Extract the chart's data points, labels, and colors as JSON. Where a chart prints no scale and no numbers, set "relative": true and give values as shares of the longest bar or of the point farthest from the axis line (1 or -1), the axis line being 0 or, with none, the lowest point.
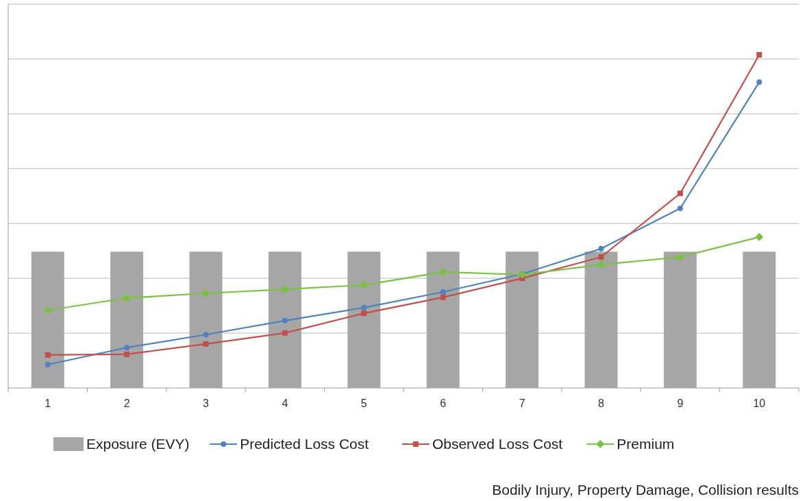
{
  "chart_data": {
    "type": "bar",
    "relative": true,
    "categories": [
      "1",
      "2",
      "3",
      "4",
      "5",
      "6",
      "7",
      "8",
      "9",
      "10"
    ],
    "series": [
      {
        "name": "Exposure (EVY)",
        "color": "#a6a6a6",
        "values": [
          0.409,
          0.409,
          0.409,
          0.409,
          0.409,
          0.409,
          0.409,
          0.409,
          0.409,
          0.409
        ]
      },
      {
        "name": "Predicted Loss Cost",
        "type": "line",
        "color": "#4f81bd",
        "marker": "circle",
        "values": [
          0.07,
          0.121,
          0.16,
          0.202,
          0.241,
          0.288,
          0.342,
          0.418,
          0.539,
          0.918
        ]
      },
      {
        "name": "Observed Loss Cost",
        "type": "line",
        "color": "#c0504d",
        "marker": "square",
        "values": [
          0.099,
          0.101,
          0.132,
          0.165,
          0.224,
          0.272,
          0.329,
          0.393,
          0.584,
          1
        ]
      },
      {
        "name": "Premium",
        "type": "line",
        "color": "#7ac143",
        "marker": "diamond",
        "values": [
          0.233,
          0.27,
          0.284,
          0.296,
          0.309,
          0.348,
          0.34,
          0.37,
          0.393,
          0.453
        ]
      }
    ],
    "grid": "y",
    "legend": "bottom",
    "annotations": [
      "Bodily Injury, Property Damage, Collision results"
    ]
  }
}
